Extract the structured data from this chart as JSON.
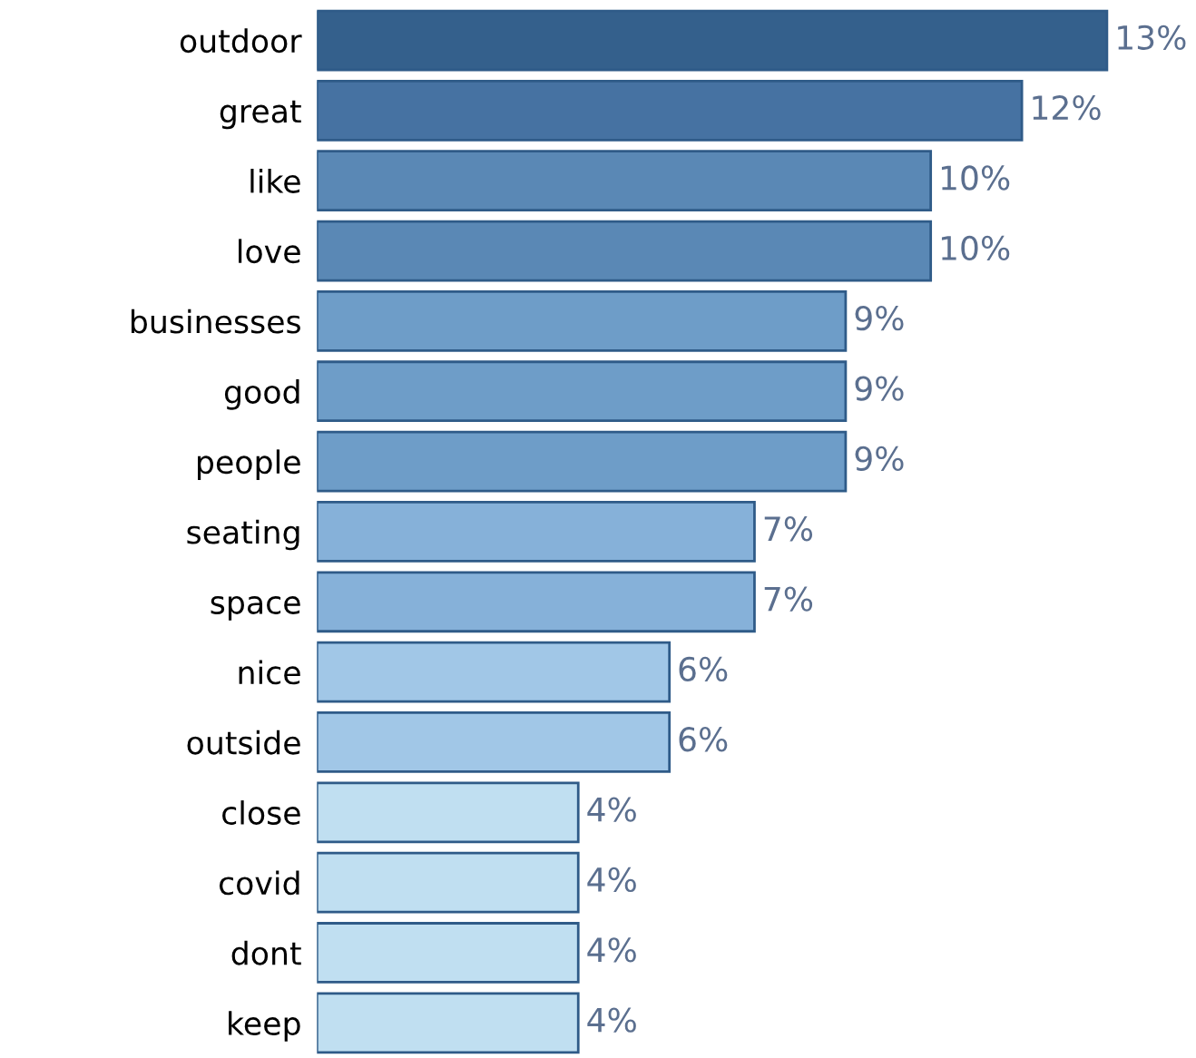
{
  "chart_data": {
    "type": "bar",
    "orientation": "horizontal",
    "categories": [
      "outdoor",
      "great",
      "like",
      "love",
      "businesses",
      "good",
      "people",
      "seating",
      "space",
      "nice",
      "outside",
      "close",
      "covid",
      "dont",
      "keep"
    ],
    "values": [
      13.0,
      11.6,
      10.1,
      10.1,
      8.7,
      8.7,
      8.7,
      7.2,
      7.2,
      5.8,
      5.8,
      4.3,
      4.3,
      4.3,
      4.3
    ],
    "value_labels": [
      "13%",
      "12%",
      "10%",
      "10%",
      "9%",
      "9%",
      "9%",
      "7%",
      "7%",
      "6%",
      "6%",
      "4%",
      "4%",
      "4%",
      "4%"
    ],
    "colors": [
      "#34608c",
      "#4672a2",
      "#5a88b5",
      "#5a88b5",
      "#6e9dc8",
      "#6e9dc8",
      "#6e9dc8",
      "#86b1d9",
      "#86b1d9",
      "#a1c7e7",
      "#a1c7e7",
      "#c0dff1",
      "#c0dff1",
      "#c0dff1",
      "#c0dff1"
    ],
    "tick_labels": "y"
  }
}
